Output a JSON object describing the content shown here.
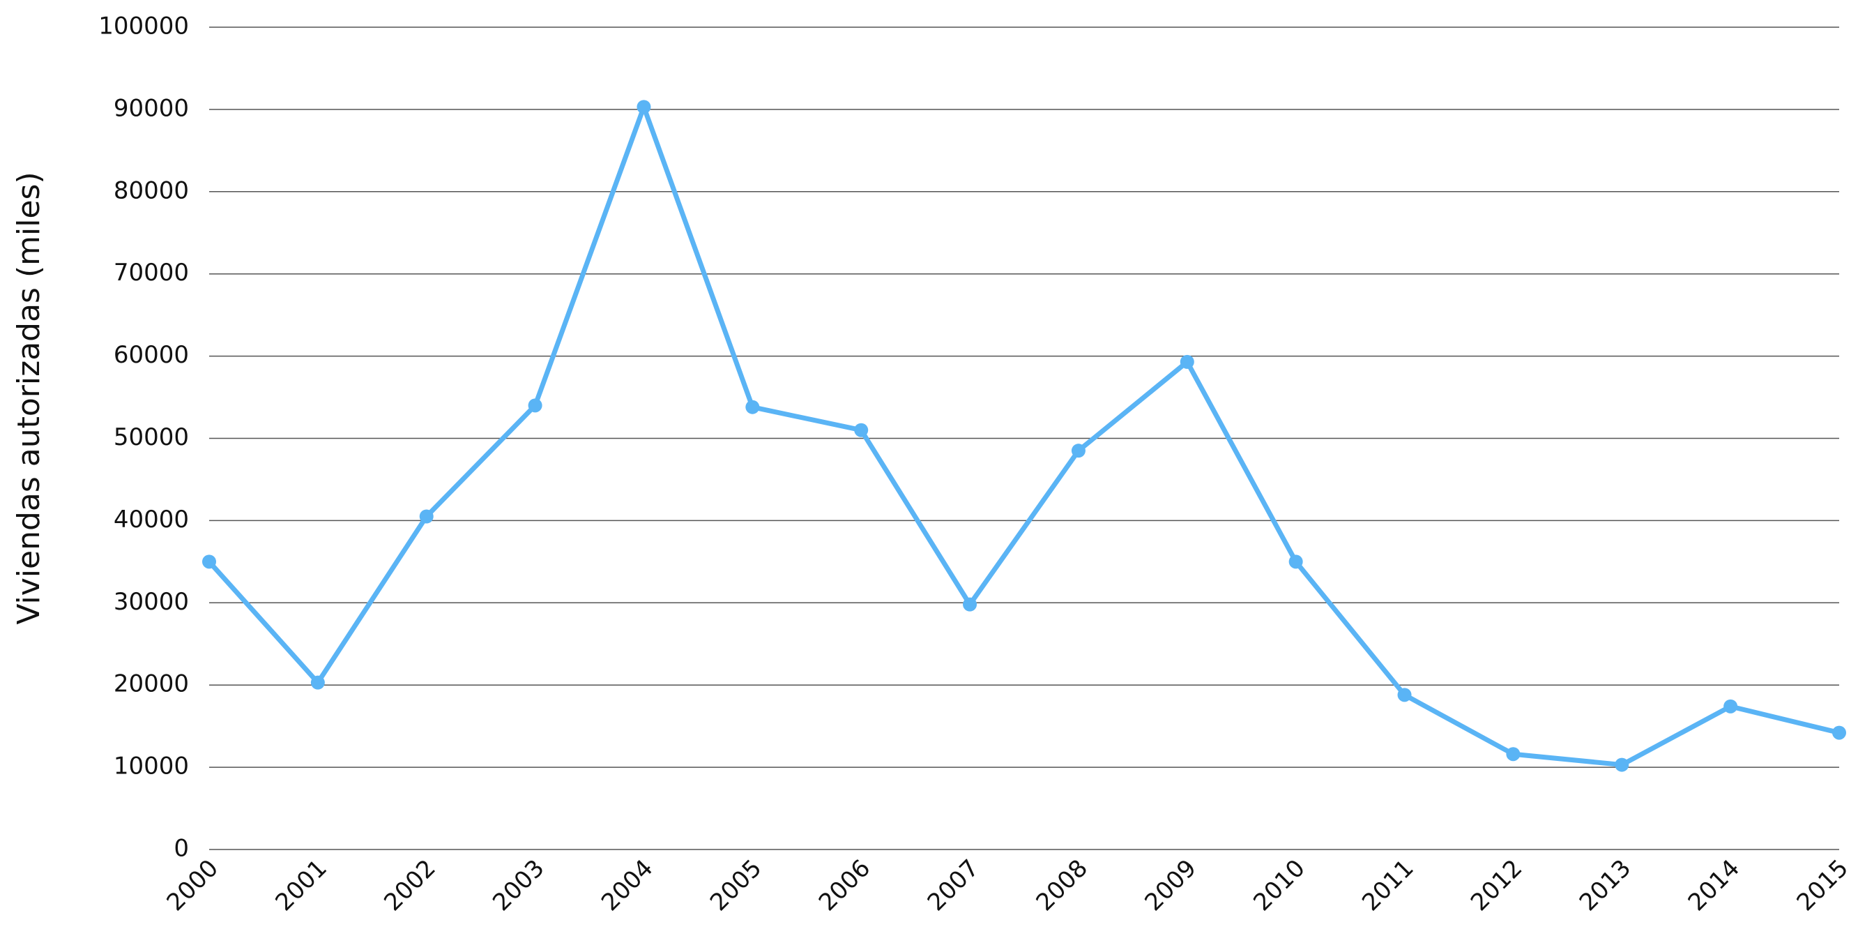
{
  "chart_data": {
    "type": "line",
    "y_label": "Viviendas autorizadas (miles)",
    "categories": [
      "2000",
      "2001",
      "2002",
      "2003",
      "2004",
      "2005",
      "2006",
      "2007",
      "2008",
      "2009",
      "2010",
      "2011",
      "2012",
      "2013",
      "2014",
      "2015"
    ],
    "values": [
      35000,
      20300,
      40500,
      54000,
      90300,
      53800,
      51000,
      29800,
      48500,
      59300,
      35000,
      18800,
      11600,
      10300,
      17400,
      14200
    ],
    "color": "#5ab4f5",
    "ylim": [
      0,
      100000
    ],
    "yticks": [
      0,
      10000,
      20000,
      30000,
      40000,
      50000,
      60000,
      70000,
      80000,
      90000,
      100000
    ],
    "grid": true
  }
}
